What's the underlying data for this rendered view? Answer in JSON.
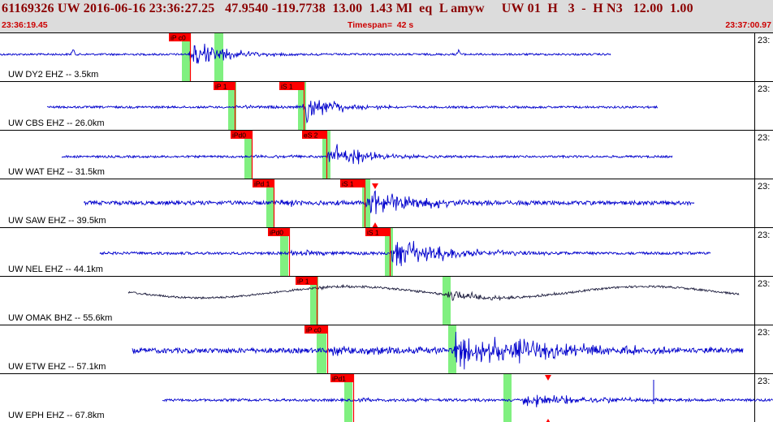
{
  "header": {
    "title": "61169326 UW 2016-06-16 23:36:27.25   47.9540 -119.7738  13.00  1.43 Ml  eq  L amyw     UW 01  H   3  -  H N3   12.00  1.00",
    "start_time": "23:36:19.45",
    "timespan": "Timespan=  42 s",
    "end_time": "23:37:00.97"
  },
  "colors": {
    "header_bg": "#dcdcdc",
    "title": "#8b0000",
    "header_small": "#cc0000",
    "trace_blue": "#0000cc",
    "trace_dark": "#202040",
    "pick_flag": "#ff0000",
    "pick_window": "#80f080",
    "axis_line": "#000000"
  },
  "channels": [
    {
      "label": "UW DY2 EHZ -- 3.5km",
      "right_label": "23:",
      "picks": [
        {
          "text": "iP c0"
        }
      ],
      "icons": []
    },
    {
      "label": "UW CBS EHZ -- 26.0km",
      "right_label": "23:",
      "picks": [
        {
          "text": "iP 1"
        },
        {
          "text": "iS 1"
        }
      ],
      "icons": []
    },
    {
      "label": "UW WAT EHZ -- 31.5km",
      "right_label": "23:",
      "picks": [
        {
          "text": "iPd0"
        },
        {
          "text": "eS 2"
        }
      ],
      "icons": []
    },
    {
      "label": "UW SAW EHZ -- 39.5km",
      "right_label": "23:",
      "picks": [
        {
          "text": "iPd 1"
        },
        {
          "text": "iS 1"
        }
      ],
      "icons": [
        "triangle-marker-icon"
      ]
    },
    {
      "label": "UW NEL EHZ -- 44.1km",
      "right_label": "23:",
      "picks": [
        {
          "text": "iPd0"
        },
        {
          "text": "iS 1"
        }
      ],
      "icons": []
    },
    {
      "label": "UW OMAK BHZ -- 55.6km",
      "right_label": "23:",
      "picks": [
        {
          "text": "iP 1"
        }
      ],
      "icons": []
    },
    {
      "label": "UW ETW EHZ -- 57.1km",
      "right_label": "23:",
      "picks": [
        {
          "text": "iP c0"
        }
      ],
      "icons": []
    },
    {
      "label": "UW EPH EHZ -- 67.8km",
      "right_label": "23:",
      "picks": [
        {
          "text": "iPd1"
        }
      ],
      "icons": [
        "triangle-marker-icon"
      ]
    }
  ]
}
